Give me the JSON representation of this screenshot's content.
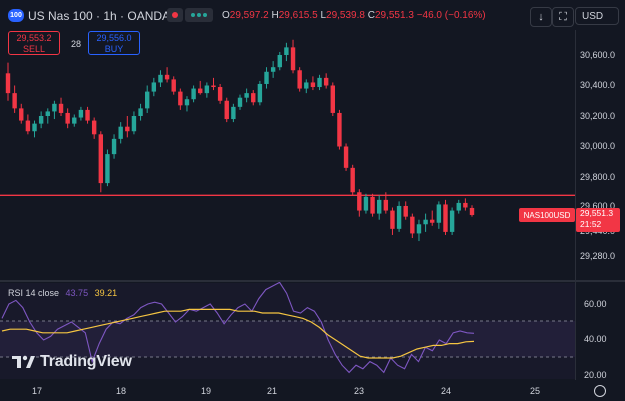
{
  "header": {
    "badge": "100",
    "symbol": "US Nas 100 · 1h · OANDA",
    "open_label": "O",
    "open": "29,597.2",
    "high_label": "H",
    "high": "29,615.5",
    "low_label": "L",
    "low": "29,539.8",
    "close_label": "C",
    "close": "29,551.3",
    "change": "−46.0 (−0.16%)",
    "currency": "USD"
  },
  "trade": {
    "sell_price": "29,553.2",
    "sell_label": "SELL",
    "spread": "28",
    "buy_price": "29,556.0",
    "buy_label": "BUY"
  },
  "price_axis": [
    "30,600.0",
    "30,400.0",
    "30,200.0",
    "30,000.0",
    "29,800.0",
    "29,600.0",
    "29,440.0",
    "29,280.0"
  ],
  "current": {
    "pair": "NAS100USD",
    "price": "29,551.3",
    "countdown": "21:52"
  },
  "rsi": {
    "label": "RSI 14 close",
    "value": "43.75",
    "ma": "39.21",
    "ticks": [
      "60.00",
      "40.00",
      "20.00"
    ]
  },
  "date_axis": [
    "17",
    "18",
    "19",
    "21",
    "23",
    "24",
    "25"
  ],
  "watermark": "TradingView",
  "colors": {
    "up": "#26a69a",
    "down": "#f23645",
    "rsi": "#7e57c2",
    "rsi_ma": "#f5c542",
    "hline": "#f23645"
  },
  "chart_data": {
    "type": "candlestick",
    "hline_price": 29680,
    "ohlc": [
      {
        "o": 30480,
        "h": 30550,
        "l": 30300,
        "c": 30350
      },
      {
        "o": 30350,
        "h": 30400,
        "l": 30220,
        "c": 30250
      },
      {
        "o": 30250,
        "h": 30280,
        "l": 30150,
        "c": 30170
      },
      {
        "o": 30170,
        "h": 30210,
        "l": 30080,
        "c": 30100
      },
      {
        "o": 30100,
        "h": 30170,
        "l": 30060,
        "c": 30150
      },
      {
        "o": 30150,
        "h": 30230,
        "l": 30120,
        "c": 30200
      },
      {
        "o": 30200,
        "h": 30250,
        "l": 30150,
        "c": 30230
      },
      {
        "o": 30230,
        "h": 30300,
        "l": 30180,
        "c": 30280
      },
      {
        "o": 30280,
        "h": 30320,
        "l": 30200,
        "c": 30220
      },
      {
        "o": 30220,
        "h": 30250,
        "l": 30120,
        "c": 30150
      },
      {
        "o": 30150,
        "h": 30210,
        "l": 30130,
        "c": 30190
      },
      {
        "o": 30190,
        "h": 30260,
        "l": 30170,
        "c": 30240
      },
      {
        "o": 30240,
        "h": 30260,
        "l": 30150,
        "c": 30170
      },
      {
        "o": 30170,
        "h": 30190,
        "l": 30050,
        "c": 30080
      },
      {
        "o": 30080,
        "h": 30100,
        "l": 29700,
        "c": 29760
      },
      {
        "o": 29760,
        "h": 29980,
        "l": 29740,
        "c": 29950
      },
      {
        "o": 29950,
        "h": 30080,
        "l": 29920,
        "c": 30050
      },
      {
        "o": 30050,
        "h": 30160,
        "l": 30020,
        "c": 30130
      },
      {
        "o": 30130,
        "h": 30200,
        "l": 30060,
        "c": 30100
      },
      {
        "o": 30100,
        "h": 30230,
        "l": 30080,
        "c": 30200
      },
      {
        "o": 30200,
        "h": 30280,
        "l": 30170,
        "c": 30250
      },
      {
        "o": 30250,
        "h": 30400,
        "l": 30220,
        "c": 30360
      },
      {
        "o": 30360,
        "h": 30450,
        "l": 30330,
        "c": 30420
      },
      {
        "o": 30420,
        "h": 30500,
        "l": 30390,
        "c": 30470
      },
      {
        "o": 30470,
        "h": 30520,
        "l": 30420,
        "c": 30440
      },
      {
        "o": 30440,
        "h": 30460,
        "l": 30340,
        "c": 30360
      },
      {
        "o": 30360,
        "h": 30380,
        "l": 30240,
        "c": 30270
      },
      {
        "o": 30270,
        "h": 30330,
        "l": 30230,
        "c": 30310
      },
      {
        "o": 30310,
        "h": 30400,
        "l": 30290,
        "c": 30380
      },
      {
        "o": 30380,
        "h": 30430,
        "l": 30340,
        "c": 30350
      },
      {
        "o": 30350,
        "h": 30420,
        "l": 30320,
        "c": 30400
      },
      {
        "o": 30400,
        "h": 30450,
        "l": 30370,
        "c": 30390
      },
      {
        "o": 30390,
        "h": 30410,
        "l": 30280,
        "c": 30300
      },
      {
        "o": 30300,
        "h": 30320,
        "l": 30160,
        "c": 30180
      },
      {
        "o": 30180,
        "h": 30280,
        "l": 30160,
        "c": 30260
      },
      {
        "o": 30260,
        "h": 30340,
        "l": 30240,
        "c": 30320
      },
      {
        "o": 30320,
        "h": 30380,
        "l": 30290,
        "c": 30350
      },
      {
        "o": 30350,
        "h": 30370,
        "l": 30270,
        "c": 30290
      },
      {
        "o": 30290,
        "h": 30430,
        "l": 30270,
        "c": 30410
      },
      {
        "o": 30410,
        "h": 30520,
        "l": 30380,
        "c": 30490
      },
      {
        "o": 30490,
        "h": 30560,
        "l": 30450,
        "c": 30520
      },
      {
        "o": 30520,
        "h": 30620,
        "l": 30500,
        "c": 30600
      },
      {
        "o": 30600,
        "h": 30680,
        "l": 30560,
        "c": 30650
      },
      {
        "o": 30650,
        "h": 30700,
        "l": 30480,
        "c": 30500
      },
      {
        "o": 30500,
        "h": 30520,
        "l": 30360,
        "c": 30380
      },
      {
        "o": 30380,
        "h": 30440,
        "l": 30350,
        "c": 30420
      },
      {
        "o": 30420,
        "h": 30460,
        "l": 30370,
        "c": 30390
      },
      {
        "o": 30390,
        "h": 30470,
        "l": 30370,
        "c": 30450
      },
      {
        "o": 30450,
        "h": 30480,
        "l": 30380,
        "c": 30400
      },
      {
        "o": 30400,
        "h": 30420,
        "l": 30200,
        "c": 30220
      },
      {
        "o": 30220,
        "h": 30240,
        "l": 29980,
        "c": 30000
      },
      {
        "o": 30000,
        "h": 30020,
        "l": 29840,
        "c": 29860
      },
      {
        "o": 29860,
        "h": 29880,
        "l": 29680,
        "c": 29700
      },
      {
        "o": 29700,
        "h": 29720,
        "l": 29540,
        "c": 29580
      },
      {
        "o": 29580,
        "h": 29690,
        "l": 29560,
        "c": 29670
      },
      {
        "o": 29670,
        "h": 29690,
        "l": 29540,
        "c": 29560
      },
      {
        "o": 29560,
        "h": 29680,
        "l": 29520,
        "c": 29650
      },
      {
        "o": 29650,
        "h": 29700,
        "l": 29560,
        "c": 29580
      },
      {
        "o": 29580,
        "h": 29600,
        "l": 29420,
        "c": 29460
      },
      {
        "o": 29460,
        "h": 29640,
        "l": 29440,
        "c": 29610
      },
      {
        "o": 29610,
        "h": 29640,
        "l": 29520,
        "c": 29540
      },
      {
        "o": 29540,
        "h": 29560,
        "l": 29400,
        "c": 29430
      },
      {
        "o": 29430,
        "h": 29520,
        "l": 29380,
        "c": 29490
      },
      {
        "o": 29490,
        "h": 29560,
        "l": 29440,
        "c": 29520
      },
      {
        "o": 29520,
        "h": 29580,
        "l": 29480,
        "c": 29500
      },
      {
        "o": 29500,
        "h": 29640,
        "l": 29460,
        "c": 29620
      },
      {
        "o": 29620,
        "h": 29650,
        "l": 29420,
        "c": 29440
      },
      {
        "o": 29440,
        "h": 29600,
        "l": 29420,
        "c": 29580
      },
      {
        "o": 29580,
        "h": 29650,
        "l": 29560,
        "c": 29630
      },
      {
        "o": 29630,
        "h": 29660,
        "l": 29580,
        "c": 29600
      },
      {
        "o": 29597,
        "h": 29615,
        "l": 29540,
        "c": 29551
      }
    ],
    "rsi": [
      52,
      60,
      62,
      58,
      50,
      44,
      40,
      42,
      46,
      48,
      50,
      47,
      44,
      28,
      38,
      46,
      50,
      49,
      52,
      54,
      58,
      60,
      61,
      60,
      55,
      50,
      53,
      57,
      56,
      58,
      60,
      55,
      49,
      54,
      58,
      60,
      56,
      63,
      68,
      70,
      72,
      66,
      56,
      55,
      58,
      56,
      50,
      40,
      32,
      26,
      22,
      26,
      24,
      28,
      26,
      22,
      30,
      26,
      24,
      32,
      28,
      36,
      34,
      40,
      38,
      44,
      45,
      44,
      43.75
    ],
    "rsi_ma": [
      45,
      46,
      46,
      46,
      45,
      44,
      44,
      44,
      44,
      45,
      46,
      47,
      48,
      49,
      50,
      51,
      52,
      53,
      54,
      55,
      56,
      56,
      56,
      57,
      57,
      57,
      57,
      57,
      57,
      56,
      56,
      56,
      55,
      55,
      55,
      54,
      53,
      52,
      50,
      47,
      43,
      40,
      37,
      34,
      31,
      30,
      30,
      30,
      30,
      31,
      33,
      35,
      36,
      37,
      37,
      38,
      38,
      39,
      39.21
    ]
  }
}
